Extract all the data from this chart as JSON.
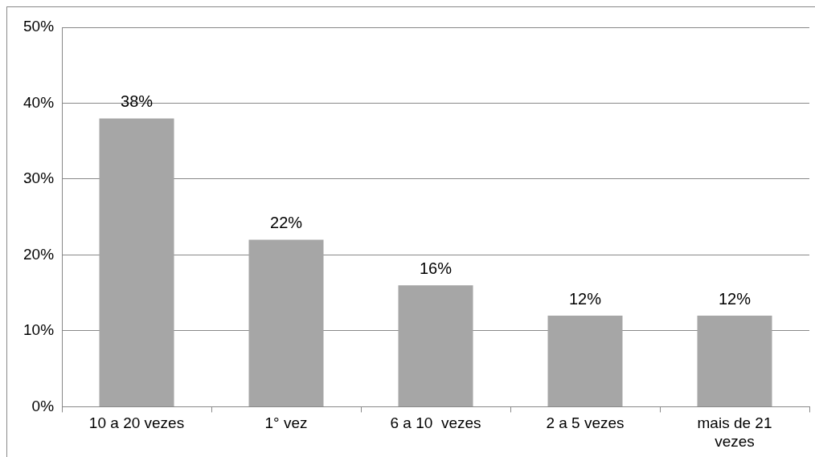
{
  "chart_data": {
    "type": "bar",
    "categories": [
      "10 a 20 vezes",
      "1° vez",
      "6 a 10  vezes",
      "2 a 5 vezes",
      "mais de 21 vezes"
    ],
    "values": [
      38,
      22,
      16,
      12,
      12
    ],
    "value_labels": [
      "38%",
      "22%",
      "16%",
      "12%",
      "12%"
    ],
    "color": "#a6a6a6",
    "ylim": [
      0,
      50
    ],
    "yticks": [
      {
        "value": 0,
        "label": "0%"
      },
      {
        "value": 10,
        "label": "10%"
      },
      {
        "value": 20,
        "label": "20%"
      },
      {
        "value": 30,
        "label": "30%"
      },
      {
        "value": 40,
        "label": "40%"
      },
      {
        "value": 50,
        "label": "50%"
      }
    ],
    "grid": "y",
    "legend": false
  }
}
